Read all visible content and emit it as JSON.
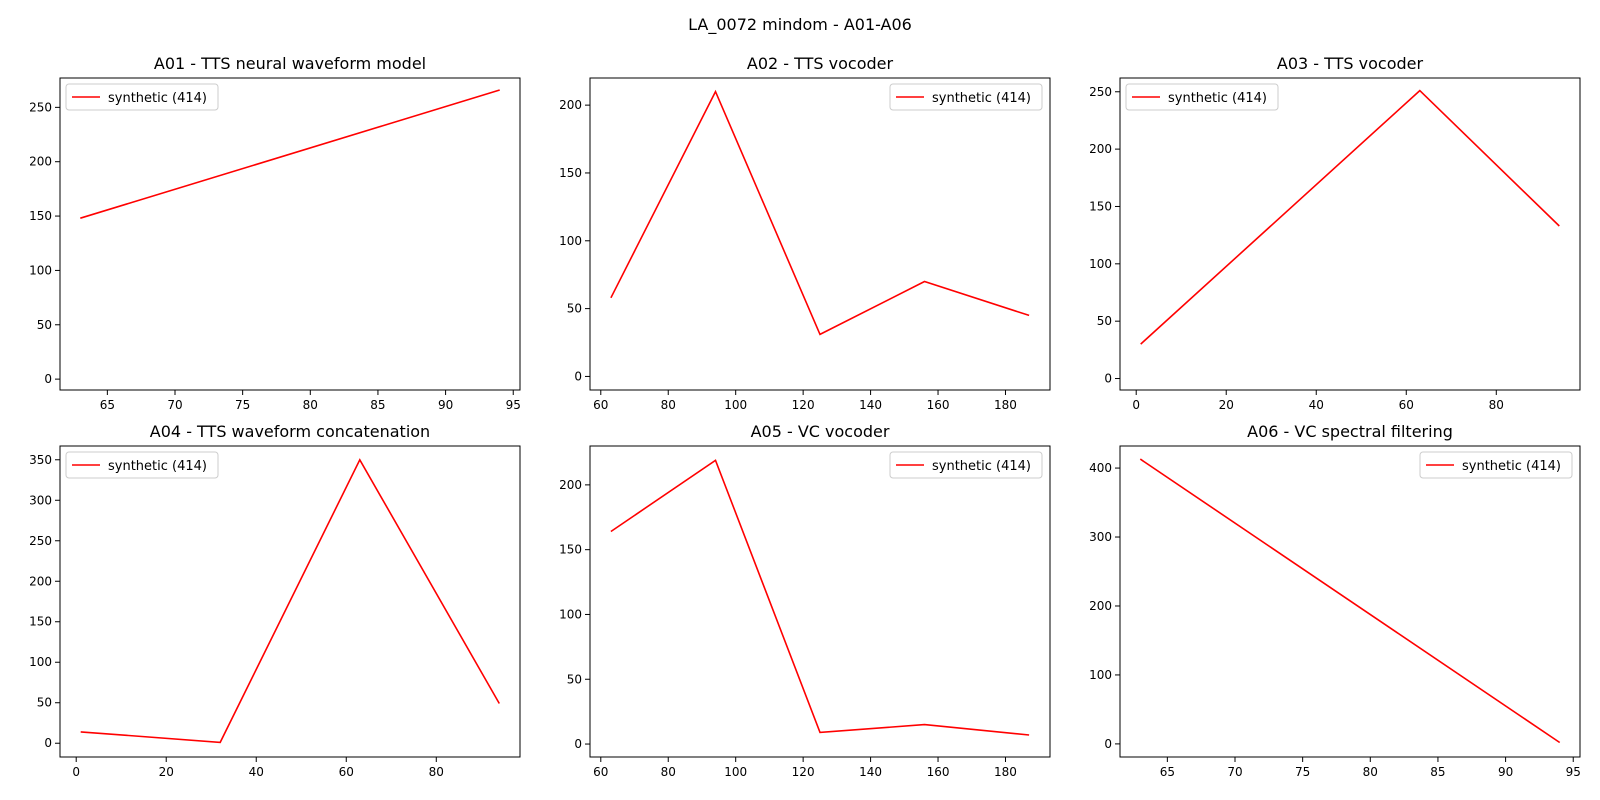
{
  "figure": {
    "suptitle": "LA_0072 mindom - A01-A06"
  },
  "colors": {
    "series": "#ff0000",
    "axes": "#000000",
    "legend_border": "#cccccc"
  },
  "chart_data": [
    {
      "type": "line",
      "title": "A01 - TTS neural waveform model",
      "xlabel": "",
      "ylabel": "",
      "xlim": [
        61.5,
        95.5
      ],
      "ylim": [
        -10,
        277
      ],
      "xticks": [
        65,
        70,
        75,
        80,
        85,
        90,
        95
      ],
      "yticks": [
        0,
        50,
        100,
        150,
        200,
        250
      ],
      "legend_position": "upper left",
      "series": [
        {
          "name": "synthetic (414)",
          "x": [
            63,
            94
          ],
          "y": [
            148,
            266
          ]
        }
      ]
    },
    {
      "type": "line",
      "title": "A02 - TTS vocoder",
      "xlabel": "",
      "ylabel": "",
      "xlim": [
        56.8,
        193.2
      ],
      "ylim": [
        -10,
        220
      ],
      "xticks": [
        60,
        80,
        100,
        120,
        140,
        160,
        180
      ],
      "yticks": [
        0,
        50,
        100,
        150,
        200
      ],
      "legend_position": "upper right",
      "series": [
        {
          "name": "synthetic (414)",
          "x": [
            63,
            94,
            125,
            156,
            187
          ],
          "y": [
            58,
            210,
            31,
            70,
            45
          ]
        }
      ]
    },
    {
      "type": "line",
      "title": "A03 - TTS vocoder",
      "xlabel": "",
      "ylabel": "",
      "xlim": [
        -3.6,
        98.6
      ],
      "ylim": [
        -10,
        262
      ],
      "xticks": [
        0,
        20,
        40,
        60,
        80
      ],
      "yticks": [
        0,
        50,
        100,
        150,
        200,
        250
      ],
      "legend_position": "upper left",
      "series": [
        {
          "name": "synthetic (414)",
          "x": [
            1,
            63,
            94
          ],
          "y": [
            30,
            251,
            133
          ]
        }
      ]
    },
    {
      "type": "line",
      "title": "A04 - TTS waveform concatenation",
      "xlabel": "",
      "ylabel": "",
      "xlim": [
        -3.6,
        98.6
      ],
      "ylim": [
        -17,
        367
      ],
      "xticks": [
        0,
        20,
        40,
        60,
        80
      ],
      "yticks": [
        0,
        50,
        100,
        150,
        200,
        250,
        300,
        350
      ],
      "legend_position": "upper left",
      "series": [
        {
          "name": "synthetic (414)",
          "x": [
            1,
            32,
            63,
            94
          ],
          "y": [
            14,
            1,
            350,
            49
          ]
        }
      ]
    },
    {
      "type": "line",
      "title": "A05 - VC vocoder",
      "xlabel": "",
      "ylabel": "",
      "xlim": [
        56.8,
        193.2
      ],
      "ylim": [
        -10,
        230
      ],
      "xticks": [
        60,
        80,
        100,
        120,
        140,
        160,
        180
      ],
      "yticks": [
        0,
        50,
        100,
        150,
        200
      ],
      "legend_position": "upper right",
      "series": [
        {
          "name": "synthetic (414)",
          "x": [
            63,
            94,
            125,
            156,
            187
          ],
          "y": [
            164,
            219,
            9,
            15,
            7
          ]
        }
      ]
    },
    {
      "type": "line",
      "title": "A06 - VC spectral filtering",
      "xlabel": "",
      "ylabel": "",
      "xlim": [
        61.5,
        95.5
      ],
      "ylim": [
        -19,
        432
      ],
      "xticks": [
        65,
        70,
        75,
        80,
        85,
        90,
        95
      ],
      "yticks": [
        0,
        100,
        200,
        300,
        400
      ],
      "legend_position": "upper right",
      "series": [
        {
          "name": "synthetic (414)",
          "x": [
            63,
            94
          ],
          "y": [
            413,
            2
          ]
        }
      ]
    }
  ]
}
